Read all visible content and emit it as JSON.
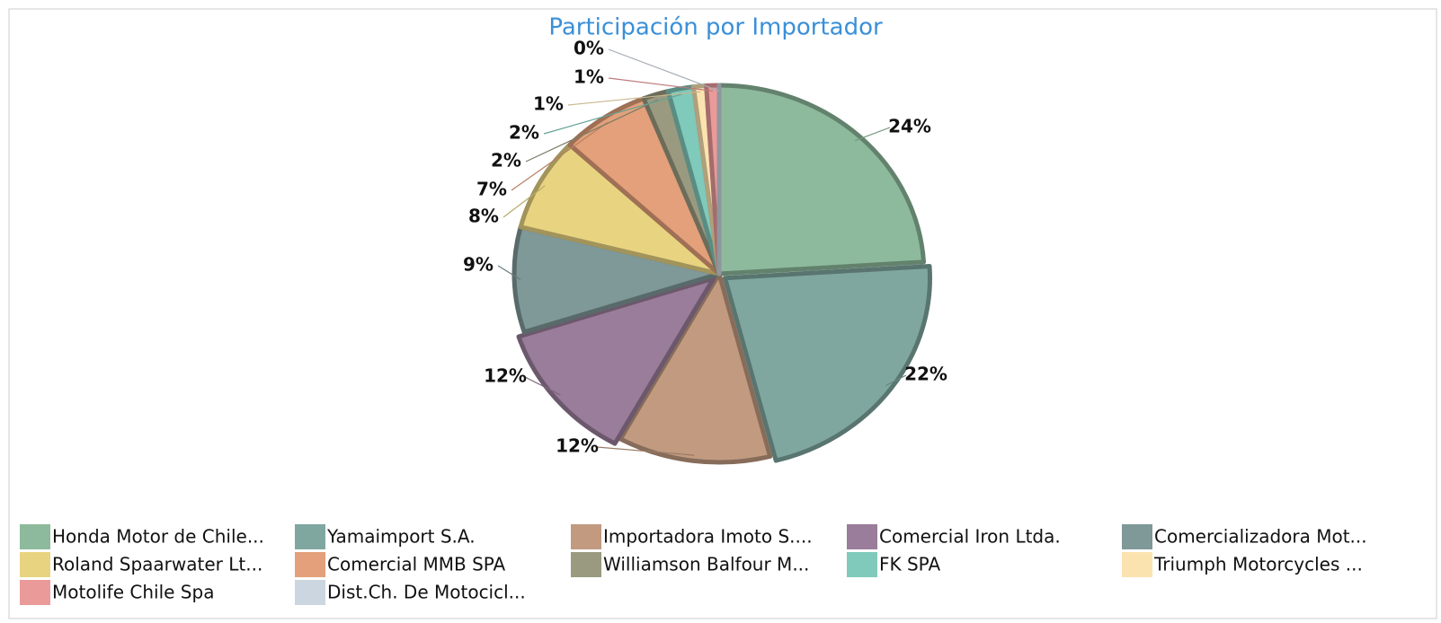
{
  "chart_data": {
    "type": "pie",
    "title": "Participación por Importador",
    "categories": [
      "Honda Motor de Chile...",
      "Yamaimport S.A.",
      "Importadora Imoto S....",
      "Comercial Iron Ltda.",
      "Comercializadora Mot...",
      "Roland Spaarwater Lt...",
      "Comercial MMB SPA",
      "Williamson Balfour M...",
      "FK SPA",
      "Triumph Motorcycles ...",
      "Motolife Chile Spa",
      "Dist.Ch. De Motocicl..."
    ],
    "values": [
      24,
      22,
      12,
      12,
      9,
      8,
      7,
      2,
      2,
      1,
      1,
      0
    ],
    "value_labels": [
      "24%",
      "22%",
      "12%",
      "12%",
      "9%",
      "8%",
      "7%",
      "2%",
      "2%",
      "1%",
      "1%",
      "0%"
    ],
    "colors": [
      "#8dba9c",
      "#7fa7a0",
      "#c19a80",
      "#9a7d9a",
      "#7f9898",
      "#e8d480",
      "#e3a07a",
      "#9a9a80",
      "#7fcabb",
      "#fbe3b0",
      "#eb9a9a",
      "#ccd6e0"
    ],
    "legend": "bottom"
  }
}
